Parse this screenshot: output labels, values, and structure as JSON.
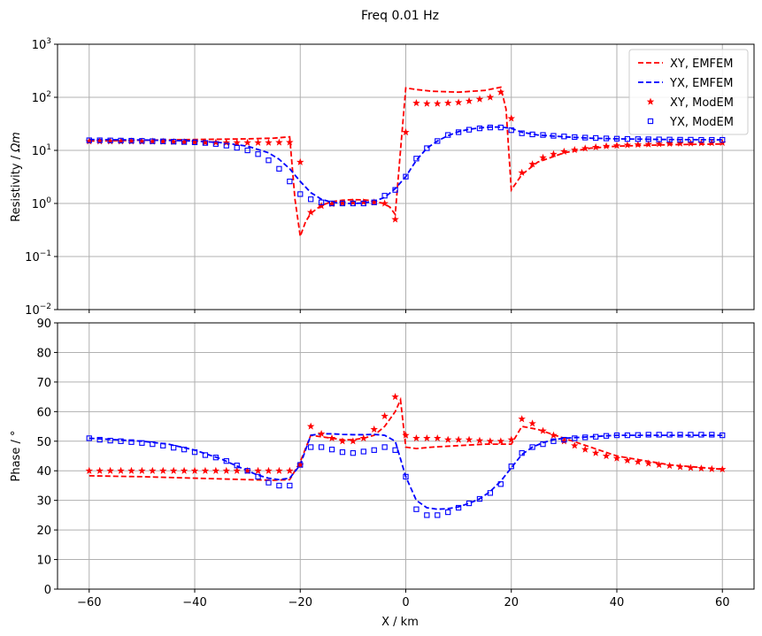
{
  "chart_data": {
    "title": "Freq 0.01 Hz",
    "xlabel": "X / km",
    "xlim": [
      -66,
      66
    ],
    "xticks": [
      -60,
      -40,
      -20,
      0,
      20,
      40,
      60
    ],
    "x_tick_labels": [
      "−60",
      "−40",
      "−20",
      "0",
      "20",
      "40",
      "60"
    ],
    "grid": true,
    "legend_placement": "top-right",
    "colors": {
      "xy": "#ff0000",
      "yx": "#0000ff"
    },
    "panels": [
      {
        "type": "line",
        "ylabel": "Resistivity / Ωm",
        "ylabel_main": "Resistivity / ",
        "ylabel_unit": "Ωm",
        "yscale": "log",
        "ylim": [
          0.01,
          1000
        ],
        "yticks": [
          0.01,
          0.1,
          1,
          10,
          100,
          1000
        ],
        "y_tick_bases": [
          "10",
          "10",
          "10",
          "10",
          "10",
          "10"
        ],
        "y_tick_exponents": [
          "−2",
          "−1",
          "0",
          "1",
          "2",
          "3"
        ],
        "legend": [
          {
            "label": "XY, EMFEM",
            "style": "dashed",
            "color": "#ff0000"
          },
          {
            "label": "YX, EMFEM",
            "style": "dashed",
            "color": "#0000ff"
          },
          {
            "label": "XY, ModEM",
            "style": "star",
            "color": "#ff0000"
          },
          {
            "label": "YX, ModEM",
            "style": "square",
            "color": "#0000ff"
          }
        ],
        "series": [
          {
            "name": "XY, EMFEM",
            "style": "dashed",
            "color": "#ff0000",
            "x": [
              -60,
              -50,
              -40,
              -30,
              -25,
              -22,
              -21,
              -20,
              -19,
              -18,
              -16,
              -14,
              -12,
              -10,
              -8,
              -6,
              -4,
              -3,
              -2,
              -1,
              0,
              2,
              5,
              10,
              15,
              18,
              19,
              20,
              22,
              25,
              30,
              35,
              40,
              50,
              60
            ],
            "y": [
              15,
              15.5,
              16,
              16.5,
              17,
              18,
              1.2,
              0.24,
              0.45,
              0.65,
              0.92,
              1.08,
              1.15,
              1.18,
              1.17,
              1.12,
              0.98,
              0.85,
              0.62,
              10,
              150,
              140,
              130,
              125,
              135,
              155,
              60,
              1.8,
              3.5,
              6,
              9,
              11,
              12,
              12.8,
              13.2
            ]
          },
          {
            "name": "YX, EMFEM",
            "style": "dashed",
            "color": "#0000ff",
            "x": [
              -60,
              -50,
              -40,
              -35,
              -30,
              -26,
              -24,
              -22,
              -20,
              -18,
              -16,
              -14,
              -12,
              -10,
              -8,
              -6,
              -4,
              -2,
              0,
              2,
              4,
              6,
              8,
              10,
              12,
              14,
              16,
              18,
              20,
              22,
              25,
              30,
              35,
              40,
              50,
              60
            ],
            "y": [
              16,
              15.7,
              15,
              14,
              12,
              9,
              6.8,
              4.5,
              2.6,
              1.6,
              1.2,
              1.05,
              1.0,
              1.0,
              1.02,
              1.1,
              1.3,
              1.9,
              3.2,
              6.5,
              11,
              15,
              19,
              22.5,
              25,
              26.5,
              27.5,
              27.5,
              26,
              22,
              19.5,
              18,
              17,
              16.5,
              16,
              15.8
            ]
          },
          {
            "name": "XY, ModEM",
            "style": "star",
            "color": "#ff0000",
            "x": [
              -60,
              -58,
              -56,
              -54,
              -52,
              -50,
              -48,
              -46,
              -44,
              -42,
              -40,
              -38,
              -36,
              -34,
              -32,
              -30,
              -28,
              -26,
              -24,
              -22,
              -20,
              -18,
              -16,
              -14,
              -12,
              -10,
              -8,
              -6,
              -4,
              -2,
              0,
              2,
              4,
              6,
              8,
              10,
              12,
              14,
              16,
              18,
              20,
              22,
              24,
              26,
              28,
              30,
              32,
              34,
              36,
              38,
              40,
              42,
              44,
              46,
              48,
              50,
              52,
              54,
              56,
              58,
              60
            ],
            "y": [
              14.8,
              14.8,
              14.8,
              14.8,
              14.8,
              14.7,
              14.7,
              14.6,
              14.5,
              14.4,
              14.3,
              14.2,
              14.1,
              14.0,
              14.0,
              14.0,
              14.0,
              14.0,
              14.1,
              14.2,
              6.0,
              0.68,
              0.9,
              0.98,
              1.02,
              1.05,
              1.06,
              1.05,
              1.0,
              0.5,
              22,
              78,
              76,
              76,
              78,
              80,
              85,
              92,
              100,
              125,
              40,
              3.8,
              5.5,
              7.3,
              8.5,
              9.5,
              10.2,
              10.9,
              11.5,
              12.0,
              12.3,
              12.6,
              12.8,
              13.0,
              13.2,
              13.4,
              13.5,
              13.6,
              13.7,
              13.8,
              13.9
            ]
          },
          {
            "name": "YX, ModEM",
            "style": "square",
            "color": "#0000ff",
            "x": [
              -60,
              -58,
              -56,
              -54,
              -52,
              -50,
              -48,
              -46,
              -44,
              -42,
              -40,
              -38,
              -36,
              -34,
              -32,
              -30,
              -28,
              -26,
              -24,
              -22,
              -20,
              -18,
              -16,
              -14,
              -12,
              -10,
              -8,
              -6,
              -4,
              -2,
              0,
              2,
              4,
              6,
              8,
              10,
              12,
              14,
              16,
              18,
              20,
              22,
              24,
              26,
              28,
              30,
              32,
              34,
              36,
              38,
              40,
              42,
              44,
              46,
              48,
              50,
              52,
              54,
              56,
              58,
              60
            ],
            "y": [
              15.5,
              15.5,
              15.4,
              15.3,
              15.2,
              15.1,
              14.9,
              14.8,
              14.6,
              14.4,
              14.2,
              13.8,
              13.2,
              12.3,
              11.2,
              10.0,
              8.5,
              6.5,
              4.5,
              2.6,
              1.5,
              1.2,
              1.05,
              1.0,
              1.0,
              1.0,
              1.0,
              1.05,
              1.4,
              1.8,
              3.2,
              7,
              11,
              15,
              19.5,
              22,
              24.5,
              26,
              27,
              27,
              24,
              21,
              20,
              19.5,
              18.8,
              18.3,
              17.8,
              17.4,
              17.1,
              16.8,
              16.6,
              16.4,
              16.3,
              16.2,
              16.1,
              16.0,
              15.9,
              15.9,
              15.8,
              15.8,
              15.8
            ]
          }
        ]
      },
      {
        "type": "line",
        "ylabel": "Phase / °",
        "yscale": "linear",
        "ylim": [
          0,
          90
        ],
        "yticks": [
          0,
          10,
          20,
          30,
          40,
          50,
          60,
          70,
          80,
          90
        ],
        "y_tick_labels": [
          "0",
          "10",
          "20",
          "30",
          "40",
          "50",
          "60",
          "70",
          "80",
          "90"
        ],
        "series": [
          {
            "name": "XY, EMFEM",
            "style": "dashed",
            "color": "#ff0000",
            "x": [
              -60,
              -50,
              -40,
              -30,
              -25,
              -22,
              -20,
              -18,
              -16,
              -14,
              -12,
              -10,
              -8,
              -6,
              -4,
              -2,
              -1,
              0,
              2,
              5,
              10,
              15,
              20,
              22,
              25,
              30,
              35,
              40,
              50,
              60
            ],
            "y": [
              38.3,
              38,
              37.5,
              37,
              36.8,
              37,
              43,
              52,
              51.5,
              51,
              50.5,
              50.5,
              51,
              52,
              55,
              60,
              64,
              48,
              47.5,
              48,
              48.5,
              49,
              49,
              55,
              54,
              51,
              48,
              45,
              42,
              40.5
            ]
          },
          {
            "name": "YX, EMFEM",
            "style": "dashed",
            "color": "#0000ff",
            "x": [
              -60,
              -55,
              -50,
              -45,
              -40,
              -35,
              -30,
              -28,
              -26,
              -24,
              -22,
              -20,
              -18,
              -16,
              -14,
              -12,
              -10,
              -8,
              -6,
              -4,
              -2,
              0,
              2,
              4,
              6,
              8,
              10,
              12,
              14,
              16,
              18,
              20,
              22,
              24,
              26,
              28,
              30,
              35,
              40,
              50,
              60
            ],
            "y": [
              51,
              50.5,
              50,
              49,
              47,
              44,
              40,
              38.5,
              37.5,
              37,
              37.5,
              42,
              52,
              52.5,
              52.5,
              52.3,
              52.2,
              52.2,
              52.3,
              52,
              50,
              38,
              30,
              27.5,
              27,
              27.2,
              27.8,
              29,
              30.5,
              33,
              36.5,
              41,
              45.5,
              48,
              49.5,
              50.5,
              51,
              51.5,
              52,
              52,
              52
            ]
          },
          {
            "name": "XY, ModEM",
            "style": "star",
            "color": "#ff0000",
            "x": [
              -60,
              -58,
              -56,
              -54,
              -52,
              -50,
              -48,
              -46,
              -44,
              -42,
              -40,
              -38,
              -36,
              -34,
              -32,
              -30,
              -28,
              -26,
              -24,
              -22,
              -20,
              -18,
              -16,
              -14,
              -12,
              -10,
              -8,
              -6,
              -4,
              -2,
              0,
              2,
              4,
              6,
              8,
              10,
              12,
              14,
              16,
              18,
              20,
              22,
              24,
              26,
              28,
              30,
              32,
              34,
              36,
              38,
              40,
              42,
              44,
              46,
              48,
              50,
              52,
              54,
              56,
              58,
              60
            ],
            "y": [
              40,
              40,
              40,
              40,
              40,
              40,
              40,
              40,
              40,
              40,
              40,
              40,
              40,
              40,
              40,
              40,
              40,
              40,
              40,
              40,
              42,
              55,
              52.5,
              51,
              50,
              50,
              51,
              54,
              58.5,
              65,
              52,
              51,
              51,
              51,
              50.5,
              50.5,
              50.5,
              50.2,
              50,
              50,
              50.5,
              57.5,
              56,
              53.5,
              52,
              50,
              48.5,
              47.2,
              46,
              45,
              44.2,
              43.5,
              43,
              42.5,
              42,
              41.7,
              41.3,
              41,
              40.8,
              40.6,
              40.5
            ]
          },
          {
            "name": "YX, ModEM",
            "style": "square",
            "color": "#0000ff",
            "x": [
              -60,
              -58,
              -56,
              -54,
              -52,
              -50,
              -48,
              -46,
              -44,
              -42,
              -40,
              -38,
              -36,
              -34,
              -32,
              -30,
              -28,
              -26,
              -24,
              -22,
              -20,
              -18,
              -16,
              -14,
              -12,
              -10,
              -8,
              -6,
              -4,
              -2,
              0,
              2,
              4,
              6,
              8,
              10,
              12,
              14,
              16,
              18,
              20,
              22,
              24,
              26,
              28,
              30,
              32,
              34,
              36,
              38,
              40,
              42,
              44,
              46,
              48,
              50,
              52,
              54,
              56,
              58,
              60
            ],
            "y": [
              51,
              50.5,
              50.2,
              50,
              49.7,
              49.4,
              49,
              48.5,
              47.8,
              47.2,
              46.3,
              45.3,
              44.5,
              43.3,
              41.8,
              40,
              38,
              36,
              35,
              35,
              42,
              48,
              48,
              47.2,
              46.3,
              46,
              46.5,
              47,
              48,
              47,
              38,
              27,
              25,
              25,
              26,
              27.5,
              29,
              30.5,
              32.5,
              35.5,
              41.5,
              46,
              48,
              49,
              50,
              50.5,
              51,
              51.3,
              51.5,
              51.8,
              52,
              52,
              52.1,
              52.2,
              52.2,
              52.2,
              52.2,
              52.2,
              52.2,
              52.2,
              52
            ]
          }
        ]
      }
    ]
  }
}
